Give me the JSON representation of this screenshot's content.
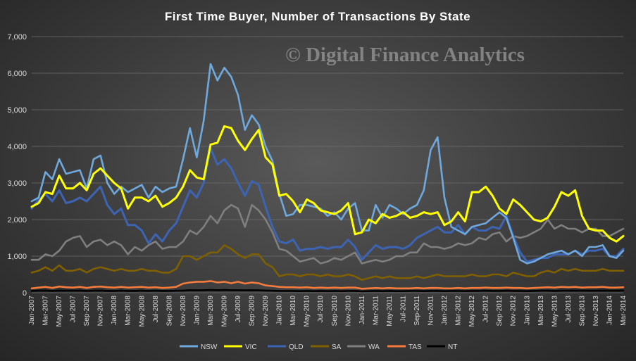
{
  "chart_data": {
    "type": "line",
    "title": "First Time Buyer, Number of Transactions By State",
    "watermark": "© Digital Finance Analytics",
    "xlabel": "",
    "ylabel": "",
    "ylim": [
      0,
      7000
    ],
    "yticks": [
      "0",
      "1,000",
      "2,000",
      "3,000",
      "4,000",
      "5,000",
      "6,000",
      "7,000"
    ],
    "ytick_values": [
      0,
      1000,
      2000,
      3000,
      4000,
      5000,
      6000,
      7000
    ],
    "grid": true,
    "legend_position": "bottom",
    "x": [
      "Jan-2007",
      "Feb-2007",
      "Mar-2007",
      "Apr-2007",
      "May-2007",
      "Jun-2007",
      "Jul-2007",
      "Aug-2007",
      "Sep-2007",
      "Oct-2007",
      "Nov-2007",
      "Dec-2007",
      "Jan-2008",
      "Feb-2008",
      "Mar-2008",
      "Apr-2008",
      "May-2008",
      "Jun-2008",
      "Jul-2008",
      "Aug-2008",
      "Sep-2008",
      "Oct-2008",
      "Nov-2008",
      "Dec-2008",
      "Jan-2009",
      "Feb-2009",
      "Mar-2009",
      "Apr-2009",
      "May-2009",
      "Jun-2009",
      "Jul-2009",
      "Aug-2009",
      "Sep-2009",
      "Oct-2009",
      "Nov-2009",
      "Dec-2009",
      "Jan-2010",
      "Feb-2010",
      "Mar-2010",
      "Apr-2010",
      "May-2010",
      "Jun-2010",
      "Jul-2010",
      "Aug-2010",
      "Sep-2010",
      "Oct-2010",
      "Nov-2010",
      "Dec-2010",
      "Jan-2011",
      "Feb-2011",
      "Mar-2011",
      "Apr-2011",
      "May-2011",
      "Jun-2011",
      "Jul-2011",
      "Aug-2011",
      "Sep-2011",
      "Oct-2011",
      "Nov-2011",
      "Dec-2011",
      "Jan-2012",
      "Feb-2012",
      "Mar-2012",
      "Apr-2012",
      "May-2012",
      "Jun-2012",
      "Jul-2012",
      "Aug-2012",
      "Sep-2012",
      "Oct-2012",
      "Nov-2012",
      "Dec-2012",
      "Jan-2013",
      "Feb-2013",
      "Mar-2013",
      "Apr-2013",
      "May-2013",
      "Jun-2013",
      "Jul-2013",
      "Aug-2013",
      "Sep-2013",
      "Oct-2013",
      "Nov-2013",
      "Dec-2013",
      "Jan-2014",
      "Feb-2014",
      "Mar-2014"
    ],
    "series": [
      {
        "name": "NSW",
        "color": "#6fa8dc",
        "width": 2.6,
        "values": [
          2500,
          2600,
          3300,
          3100,
          3650,
          3250,
          3300,
          3350,
          2850,
          3650,
          3750,
          3000,
          2700,
          2900,
          2750,
          2850,
          2950,
          2600,
          2900,
          2750,
          2850,
          2900,
          3650,
          4500,
          3700,
          4700,
          6250,
          5800,
          6150,
          5900,
          5400,
          4450,
          4850,
          4600,
          4000,
          3600,
          2700,
          2100,
          2150,
          2400,
          2400,
          2350,
          2300,
          2100,
          2200,
          2000,
          2300,
          2450,
          1700,
          1700,
          2400,
          2050,
          2400,
          2300,
          2150,
          2300,
          2400,
          2800,
          3900,
          4250,
          2600,
          1800,
          1700,
          1600,
          1800,
          1850,
          1900,
          2050,
          2200,
          2050,
          1500,
          900,
          800,
          850,
          950,
          1050,
          1100,
          1150,
          1050,
          1150,
          1000,
          1250,
          1250,
          1300,
          1000,
          950,
          1150
        ]
      },
      {
        "name": "VIC",
        "color": "#ffff00",
        "width": 3.0,
        "values": [
          2350,
          2450,
          2750,
          2700,
          3200,
          2850,
          2850,
          3000,
          2800,
          3250,
          3400,
          3200,
          3000,
          2850,
          2300,
          2600,
          2600,
          2500,
          2650,
          2350,
          2450,
          2600,
          2900,
          3350,
          3150,
          3100,
          4050,
          4100,
          4550,
          4500,
          4150,
          3900,
          4200,
          4450,
          3700,
          3500,
          2650,
          2700,
          2500,
          2200,
          2550,
          2450,
          2250,
          2200,
          2150,
          2250,
          2450,
          1600,
          1650,
          2000,
          1900,
          2150,
          2050,
          2100,
          2200,
          2050,
          2100,
          2200,
          2150,
          2200,
          1850,
          1950,
          2200,
          1950,
          2750,
          2750,
          2900,
          2650,
          2300,
          2150,
          2550,
          2400,
          2200,
          2000,
          1950,
          2050,
          2350,
          2750,
          2650,
          2800,
          2100,
          1750,
          1700,
          1700,
          1500,
          1400,
          1550
        ]
      },
      {
        "name": "QLD",
        "color": "#3d64b3",
        "width": 3.0,
        "values": [
          2300,
          2550,
          2700,
          2500,
          2800,
          2450,
          2500,
          2600,
          2500,
          2700,
          2900,
          2400,
          2150,
          2300,
          1850,
          1850,
          1700,
          1350,
          1600,
          1400,
          1700,
          1900,
          2350,
          2800,
          2600,
          3000,
          3950,
          3500,
          3650,
          3400,
          3000,
          2650,
          3050,
          2950,
          2350,
          1800,
          1400,
          1350,
          1450,
          1150,
          1200,
          1200,
          1250,
          1200,
          1250,
          1250,
          1450,
          1250,
          900,
          1100,
          1300,
          1200,
          1250,
          1250,
          1200,
          1300,
          1500,
          1600,
          1700,
          1800,
          1650,
          1650,
          1850,
          1600,
          1800,
          1700,
          1700,
          1800,
          1750,
          2100,
          1550,
          1100,
          850,
          900,
          950,
          950,
          1050,
          1050,
          1050,
          1150,
          1050,
          1150,
          1150,
          1200,
          1000,
          1000,
          1200
        ]
      },
      {
        "name": "SA",
        "color": "#7f6000",
        "width": 2.6,
        "values": [
          550,
          600,
          700,
          600,
          750,
          600,
          600,
          650,
          550,
          650,
          700,
          650,
          600,
          650,
          600,
          600,
          650,
          600,
          600,
          550,
          550,
          650,
          1000,
          1000,
          900,
          1000,
          1100,
          1100,
          1300,
          1200,
          1050,
          950,
          1050,
          1050,
          800,
          700,
          450,
          500,
          500,
          450,
          500,
          500,
          450,
          500,
          450,
          450,
          500,
          450,
          350,
          400,
          450,
          400,
          450,
          400,
          400,
          400,
          450,
          400,
          450,
          500,
          450,
          450,
          450,
          450,
          500,
          450,
          450,
          500,
          500,
          450,
          550,
          500,
          450,
          450,
          550,
          600,
          550,
          650,
          600,
          650,
          600,
          600,
          600,
          650,
          600,
          600,
          600
        ]
      },
      {
        "name": "WA",
        "color": "#7f7f7f",
        "width": 2.6,
        "values": [
          900,
          900,
          1050,
          1000,
          1150,
          1400,
          1500,
          1550,
          1250,
          1400,
          1450,
          1300,
          1400,
          1300,
          1050,
          1250,
          1150,
          1300,
          1400,
          1200,
          1250,
          1250,
          1400,
          1700,
          1600,
          1800,
          2100,
          1900,
          2250,
          2400,
          2300,
          1800,
          2400,
          2250,
          2000,
          1650,
          1200,
          1150,
          1000,
          850,
          900,
          950,
          800,
          850,
          950,
          900,
          1000,
          1100,
          800,
          850,
          900,
          850,
          900,
          1000,
          1000,
          1100,
          1100,
          1350,
          1250,
          1250,
          1200,
          1250,
          1350,
          1300,
          1350,
          1500,
          1450,
          1600,
          1650,
          1400,
          1550,
          1500,
          1550,
          1650,
          1750,
          2000,
          1750,
          1850,
          1750,
          1750,
          1650,
          1750,
          1750,
          1550,
          1550,
          1650,
          1750
        ]
      },
      {
        "name": "TAS",
        "color": "#f47b3c",
        "width": 2.6,
        "values": [
          120,
          140,
          160,
          130,
          170,
          150,
          140,
          160,
          130,
          160,
          170,
          150,
          140,
          160,
          140,
          150,
          160,
          140,
          150,
          130,
          140,
          160,
          250,
          280,
          300,
          300,
          320,
          280,
          300,
          260,
          300,
          250,
          280,
          260,
          200,
          180,
          160,
          150,
          150,
          140,
          150,
          130,
          140,
          130,
          140,
          130,
          140,
          140,
          110,
          120,
          130,
          120,
          130,
          120,
          120,
          120,
          130,
          120,
          130,
          130,
          120,
          120,
          130,
          120,
          130,
          130,
          140,
          130,
          130,
          140,
          130,
          130,
          120,
          130,
          140,
          150,
          140,
          160,
          150,
          160,
          140,
          150,
          150,
          160,
          140,
          140,
          150
        ]
      },
      {
        "name": "NT",
        "color": "#000000",
        "width": 2.6,
        "values": [
          50,
          55,
          60,
          50,
          60,
          55,
          55,
          60,
          50,
          55,
          60,
          50,
          50,
          55,
          50,
          50,
          55,
          50,
          55,
          50,
          50,
          55,
          60,
          70,
          65,
          70,
          75,
          70,
          75,
          70,
          70,
          65,
          70,
          65,
          60,
          55,
          50,
          50,
          50,
          45,
          50,
          45,
          50,
          45,
          50,
          45,
          50,
          50,
          40,
          45,
          50,
          45,
          50,
          45,
          45,
          50,
          50,
          45,
          50,
          50,
          45,
          50,
          50,
          45,
          50,
          50,
          55,
          50,
          50,
          55,
          50,
          50,
          45,
          50,
          55,
          55,
          50,
          55,
          55,
          60,
          55,
          55,
          55,
          60,
          55,
          55,
          60
        ]
      }
    ]
  }
}
